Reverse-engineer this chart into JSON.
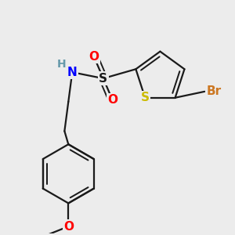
{
  "background_color": "#ececec",
  "bond_color": "#1a1a1a",
  "bond_width": 1.6,
  "fig_width": 3.0,
  "fig_height": 3.0,
  "dpi": 100,
  "colors": {
    "N": "#0000ff",
    "H": "#6699aa",
    "O": "#ff0000",
    "S_sulfonyl": "#1a1a1a",
    "S_thio": "#ccbb00",
    "Br": "#cc7722",
    "C": "#1a1a1a"
  }
}
